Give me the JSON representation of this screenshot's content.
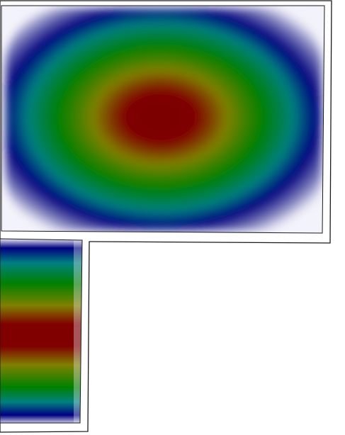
{
  "figure": {
    "background": "#ffffff",
    "outline_color": "#1a1a1a",
    "colormap": [
      "#f3f3fb",
      "#000080",
      "#008080",
      "#008000",
      "#808000",
      "#800000"
    ]
  },
  "panels": [
    {
      "name": "upper-field-panel",
      "shape": "elliptical",
      "peak_value": 1.0
    },
    {
      "name": "lower-field-panel",
      "shape": "horizontal-bands",
      "peak_value": 1.0
    }
  ]
}
